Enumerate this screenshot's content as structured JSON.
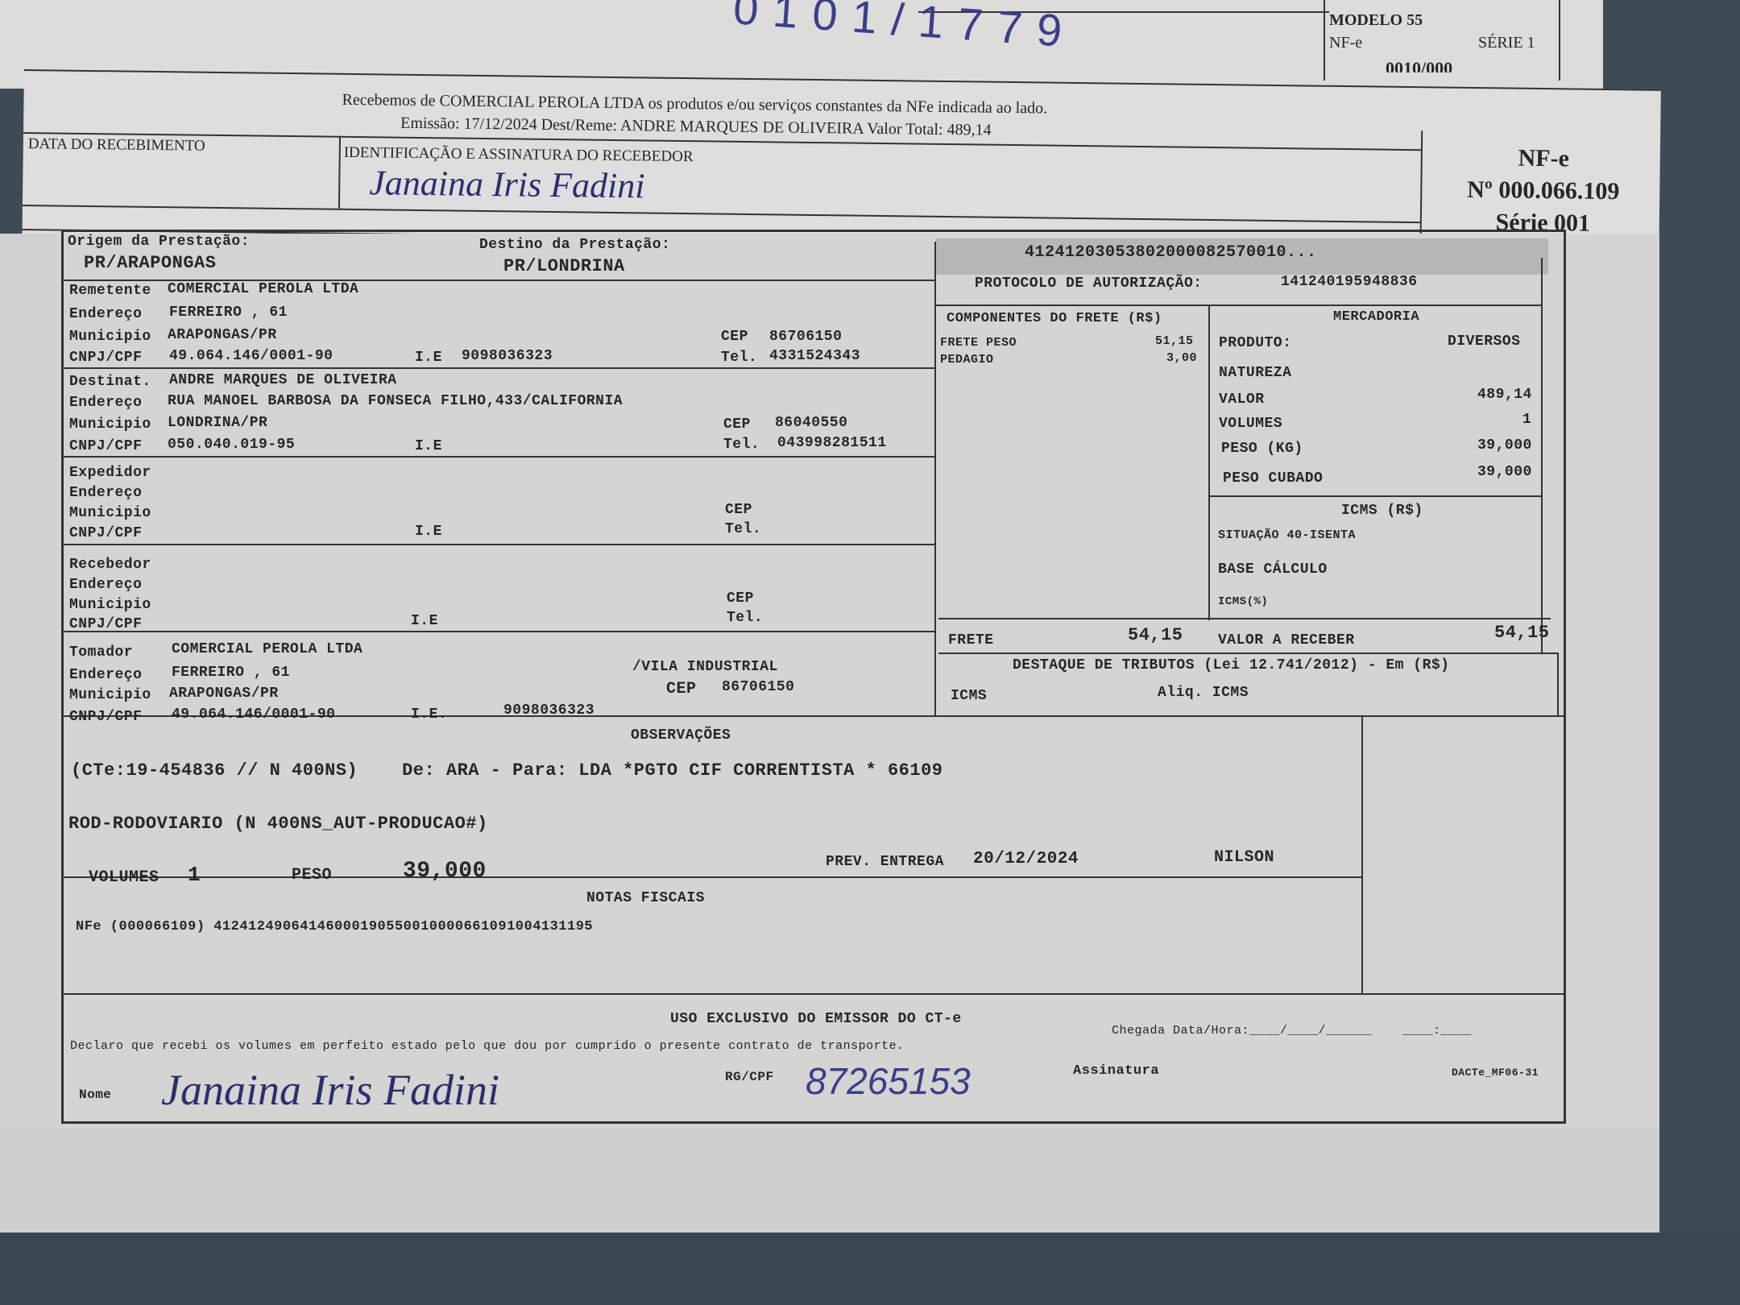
{
  "back_nfe": {
    "handwritten_number": "0101/1779",
    "modelo": "MODELO 55",
    "nfe": "NF-e",
    "serie": "SÉRIE 1",
    "partial_number": "0010/000"
  },
  "receipt": {
    "line1": "Recebemos de COMERCIAL PEROLA LTDA os produtos e/ou serviços constantes da NFe indicada ao lado.",
    "line2": "Emissão: 17/12/2024  Dest/Reme: ANDRE MARQUES DE OLIVEIRA  Valor Total: 489,14",
    "date_label": "DATA DO RECEBIMENTO",
    "ident_label": "IDENTIFICAÇÃO E ASSINATURA DO RECEBEDOR",
    "signature": "Janaina Iris Fadini",
    "nfe_title": "NF-e",
    "nfe_number": "Nº 000.066.109",
    "nfe_serie": "Série 001"
  },
  "prestacao": {
    "origem_label": "Origem da Prestação:",
    "origem": "PR/ARAPONGAS",
    "destino_label": "Destino da Prestação:",
    "destino": "PR/LONDRINA"
  },
  "chave": "41241203053802000082570010...",
  "protocolo": {
    "label": "PROTOCOLO DE AUTORIZAÇÃO:",
    "value": "141240195948836"
  },
  "labels": {
    "endereco": "Endereço",
    "municipio": "Municipio",
    "cnpj": "CNPJ/CPF",
    "ie": "I.E",
    "ie_dot": "I.E.",
    "cep": "CEP",
    "tel": "Tel."
  },
  "remetente": {
    "label": "Remetente",
    "nome": "COMERCIAL PEROLA LTDA",
    "endereco": "FERREIRO , 61",
    "municipio": "ARAPONGAS/PR",
    "cnpj": "49.064.146/0001-90",
    "ie": "9098036323",
    "cep": "86706150",
    "tel": "4331524343"
  },
  "destinatario": {
    "label": "Destinat.",
    "nome": "ANDRE MARQUES DE OLIVEIRA",
    "endereco": "RUA MANOEL BARBOSA DA FONSECA FILHO,433/CALIFORNIA",
    "municipio": "LONDRINA/PR",
    "cnpj": "050.040.019-95",
    "cep": "86040550",
    "tel": "043998281511"
  },
  "expedidor": {
    "label": "Expedidor"
  },
  "recebedor": {
    "label": "Recebedor"
  },
  "tomador": {
    "label": "Tomador",
    "nome": "COMERCIAL PEROLA LTDA",
    "endereco": "FERREIRO , 61",
    "bairro": "/VILA INDUSTRIAL",
    "municipio": "ARAPONGAS/PR",
    "cnpj": "49.064.146/0001-90",
    "ie": "9098036323",
    "cep": "86706150"
  },
  "componentes": {
    "title": "COMPONENTES DO FRETE (R$)",
    "items": [
      {
        "label": "FRETE PESO",
        "value": "51,15"
      },
      {
        "label": "PEDAGIO",
        "value": "3,00"
      }
    ],
    "total_label": "FRETE",
    "total": "54,15"
  },
  "mercadoria": {
    "title": "MERCADORIA",
    "produto_label": "PRODUTO:",
    "produto": "DIVERSOS",
    "natureza_label": "NATUREZA",
    "valor_label": "VALOR",
    "valor": "489,14",
    "volumes_label": "VOLUMES",
    "volumes": "1",
    "peso_label": "PESO (KG)",
    "peso": "39,000",
    "peso_cubado_label": "PESO CUBADO",
    "peso_cubado": "39,000"
  },
  "icms": {
    "title": "ICMS (R$)",
    "situacao": "SITUAÇÃO 40-ISENTA",
    "base_label": "BASE CÁLCULO",
    "perc_label": "ICMS(%)"
  },
  "valor_receber": {
    "label": "VALOR A RECEBER",
    "value": "54,15"
  },
  "tributos": {
    "title": "DESTAQUE DE TRIBUTOS (Lei 12.741/2012) - Em (R$)",
    "icms": "ICMS",
    "aliq": "Aliq. ICMS"
  },
  "observacoes": {
    "title": "OBSERVAÇÕES",
    "line1": "(CTe:19-454836 // N 400NS)    De: ARA - Para: LDA *PGTO CIF CORRENTISTA * 66109",
    "line2": "ROD-RODOVIARIO (N 400NS_AUT-PRODUCAO#)",
    "volumes_label": "VOLUMES",
    "volumes": "1",
    "peso_label": "PESO",
    "peso": "39,000",
    "prev_label": "PREV. ENTREGA",
    "prev": "20/12/2024",
    "motorista": "NILSON"
  },
  "notas": {
    "title": "NOTAS FISCAIS",
    "line": "NFe (000066109) 41241249064146000190550010000661091004131195"
  },
  "uso": {
    "title": "USO EXCLUSIVO DO EMISSOR DO CT-e",
    "declaro": "Declaro que recebi os volumes em perfeito estado pelo que dou por cumprido o presente contrato de transporte.",
    "chegada": "Chegada Data/Hora:____/____/______    ____:____",
    "nome_label": "Nome",
    "nome_signature": "Janaina Iris Fadini",
    "rg_label": "RG/CPF",
    "rg_value": "87265153",
    "assinatura_label": "Assinatura",
    "dacte": "DACTe_MF06-31"
  }
}
